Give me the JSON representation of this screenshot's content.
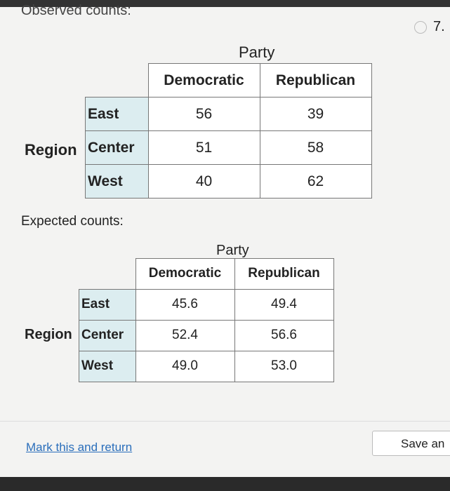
{
  "header": {
    "section_label": "Observed counts:",
    "question_number": "7."
  },
  "observed": {
    "column_group": "Party",
    "row_group": "Region",
    "columns": [
      "Democratic",
      "Republican"
    ],
    "rows": [
      {
        "label": "East",
        "values": [
          56,
          39
        ]
      },
      {
        "label": "Center",
        "values": [
          51,
          58
        ]
      },
      {
        "label": "West",
        "values": [
          40,
          62
        ]
      }
    ]
  },
  "expected": {
    "section_label": "Expected counts:",
    "column_group": "Party",
    "row_group": "Region",
    "columns": [
      "Democratic",
      "Republican"
    ],
    "rows": [
      {
        "label": "East",
        "values": [
          "45.6",
          "49.4"
        ]
      },
      {
        "label": "Center",
        "values": [
          "52.4",
          "56.6"
        ]
      },
      {
        "label": "West",
        "values": [
          "49.0",
          "53.0"
        ]
      }
    ]
  },
  "footer": {
    "link": "Mark this and return",
    "button": "Save an"
  }
}
